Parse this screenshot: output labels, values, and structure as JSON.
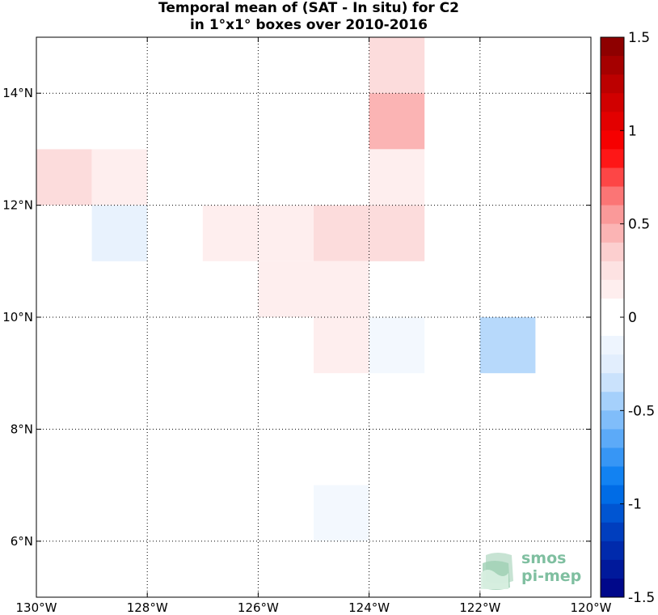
{
  "chart_data": {
    "type": "heatmap",
    "title": "Temporal mean of (SAT - In situ) for C2",
    "subtitle": "in 1°x1° boxes over 2010-2016",
    "x_ticks": [
      "130°W",
      "128°W",
      "126°W",
      "124°W",
      "122°W",
      "120°W"
    ],
    "y_ticks": [
      "6°N",
      "8°N",
      "10°N",
      "12°N",
      "14°N"
    ],
    "xlim": [
      -130,
      -120
    ],
    "ylim": [
      5,
      15
    ],
    "grid": true,
    "colorbar": {
      "range": [
        -1.5,
        1.5
      ],
      "ticks": [
        "1.5",
        "1",
        "0.5",
        "0",
        "-0.5",
        "-1",
        "-1.5"
      ]
    },
    "cells": [
      {
        "lon": -123.5,
        "lat": 14.5,
        "value": 0.3
      },
      {
        "lon": -123.5,
        "lat": 13.5,
        "value": 0.45
      },
      {
        "lon": -129.5,
        "lat": 12.5,
        "value": 0.3
      },
      {
        "lon": -128.5,
        "lat": 12.5,
        "value": 0.15
      },
      {
        "lon": -123.5,
        "lat": 12.5,
        "value": 0.15
      },
      {
        "lon": -128.5,
        "lat": 11.5,
        "value": -0.2
      },
      {
        "lon": -126.5,
        "lat": 11.5,
        "value": 0.15
      },
      {
        "lon": -125.5,
        "lat": 11.5,
        "value": 0.15
      },
      {
        "lon": -124.5,
        "lat": 11.5,
        "value": 0.3
      },
      {
        "lon": -123.5,
        "lat": 11.5,
        "value": 0.3
      },
      {
        "lon": -125.5,
        "lat": 10.5,
        "value": 0.15
      },
      {
        "lon": -124.5,
        "lat": 10.5,
        "value": 0.15
      },
      {
        "lon": -124.5,
        "lat": 9.5,
        "value": 0.15
      },
      {
        "lon": -123.5,
        "lat": 9.5,
        "value": -0.1
      },
      {
        "lon": -121.5,
        "lat": 9.5,
        "value": -0.4
      },
      {
        "lon": -124.5,
        "lat": 6.5,
        "value": -0.1
      }
    ]
  },
  "watermark": {
    "line1": "smos",
    "line2": "pi-mep"
  }
}
